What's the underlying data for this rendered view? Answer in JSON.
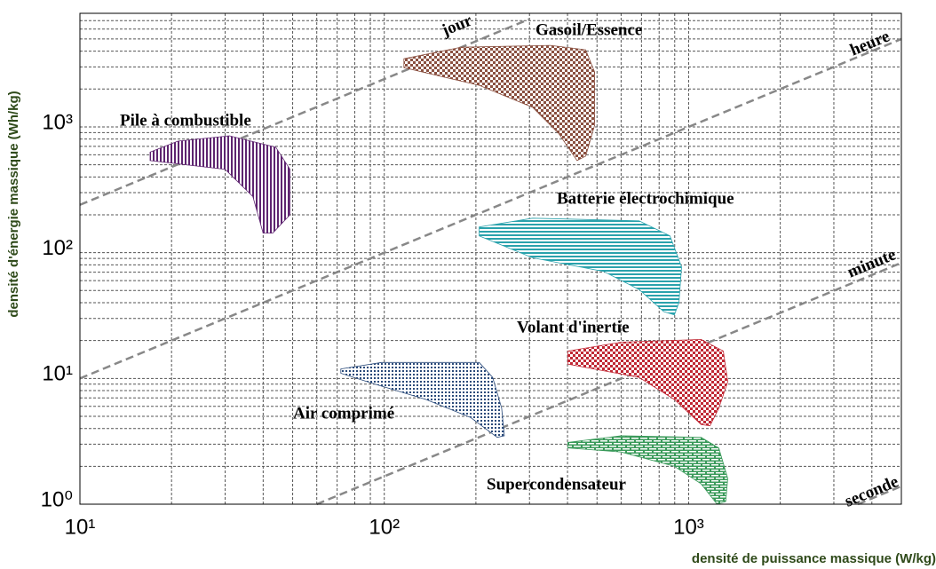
{
  "chart_data": {
    "type": "region",
    "x_label": "densité de puissance massique (W/kg)",
    "y_label": "densité d'énergie massique (Wh/kg)",
    "log_x": true,
    "log_y": true,
    "grid": true,
    "xlim": [
      10,
      5000
    ],
    "ylim": [
      1,
      8000
    ],
    "xticks": [
      {
        "value": 10,
        "label": "10¹"
      },
      {
        "value": 100,
        "label": "10²"
      },
      {
        "value": 1000,
        "label": "10³"
      }
    ],
    "yticks": [
      {
        "value": 1,
        "label": "10⁰"
      },
      {
        "value": 10,
        "label": "10¹"
      },
      {
        "value": 100,
        "label": "10²"
      },
      {
        "value": 1000,
        "label": "10³"
      }
    ],
    "xminorticks": [
      20,
      30,
      40,
      50,
      60,
      70,
      80,
      90,
      200,
      300,
      400,
      500,
      600,
      700,
      800,
      900,
      2000,
      3000,
      4000,
      5000
    ],
    "yminorticks": [
      2,
      3,
      4,
      5,
      6,
      7,
      8,
      9,
      20,
      30,
      40,
      50,
      60,
      70,
      80,
      90,
      200,
      300,
      400,
      500,
      600,
      700,
      800,
      900,
      2000,
      3000,
      4000,
      5000,
      6000,
      7000,
      8000
    ],
    "series": [
      {
        "name": "Pile à combustible",
        "color": "#5e2470",
        "hatch": "vertical",
        "x": [
          17,
          21,
          31,
          44,
          49,
          49,
          43,
          40,
          37,
          30,
          17
        ],
        "y": [
          630,
          770,
          850,
          690,
          460,
          200,
          143,
          143,
          280,
          460,
          540
        ]
      },
      {
        "name": "Gasoil/Essence",
        "color": "#8a5040",
        "hatch": "checker",
        "x": [
          116,
          179,
          351,
          459,
          491,
          491,
          459,
          430,
          375,
          307,
          205,
          116
        ],
        "y": [
          3480,
          4300,
          4450,
          4100,
          2730,
          1030,
          586,
          540,
          879,
          1430,
          2140,
          2960
        ]
      },
      {
        "name": "Batterie électrochimique",
        "color": "#2aa2ac",
        "hatch": "horizontal",
        "x": [
          205,
          307,
          687,
          868,
          948,
          929,
          898,
          828,
          687,
          525,
          307,
          205
        ],
        "y": [
          160,
          188,
          179,
          136,
          77,
          40,
          32,
          34,
          51,
          71,
          91,
          136
        ]
      },
      {
        "name": "Volant d'inertie",
        "color": "#c02834",
        "hatch": "checker",
        "x": [
          401,
          600,
          1099,
          1300,
          1344,
          1256,
          1175,
          1099,
          898,
          687,
          401
        ],
        "y": [
          16.5,
          19.4,
          20.4,
          16.5,
          9.4,
          5.8,
          4.2,
          4.3,
          6.8,
          10.2,
          13
        ]
      },
      {
        "name": "Air comprimé",
        "color": "#2a4a7a",
        "hatch": "dots",
        "x": [
          72,
          98,
          205,
          227,
          243,
          248,
          235,
          192,
          137,
          92,
          72
        ],
        "y": [
          11.9,
          13.4,
          13.4,
          10.2,
          5.8,
          3.5,
          3.4,
          4.9,
          6.8,
          9.1,
          11
        ]
      },
      {
        "name": "Supercondensateur",
        "color": "#3a9a5a",
        "hatch": "brick",
        "x": [
          401,
          600,
          1099,
          1256,
          1344,
          1324,
          1240,
          1099,
          898,
          600,
          401
        ],
        "y": [
          3.1,
          3.5,
          3.4,
          2.8,
          1.6,
          1.05,
          1.0,
          1.45,
          2.0,
          2.6,
          2.8
        ]
      }
    ],
    "time_lines": [
      {
        "label": "jour",
        "x": [
          10,
          300
        ],
        "y": [
          240,
          7200
        ]
      },
      {
        "label": "heure",
        "x": [
          10,
          5000
        ],
        "y": [
          10,
          5000
        ]
      },
      {
        "label": "minute",
        "x": [
          60,
          5000
        ],
        "y": [
          1,
          83
        ]
      },
      {
        "label": "seconde",
        "x": [
          3600,
          5000
        ],
        "y": [
          1,
          1.39
        ]
      }
    ]
  }
}
